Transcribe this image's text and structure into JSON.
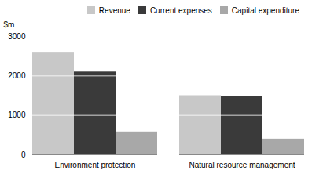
{
  "chart_data": {
    "type": "bar",
    "ylabel": "$m",
    "categories": [
      "Environment protection",
      "Natural resource management"
    ],
    "series": [
      {
        "name": "Revenue",
        "color": "#c8c8c8",
        "values": [
          2600,
          1500
        ]
      },
      {
        "name": "Current expenses",
        "color": "#3a3a3a",
        "values": [
          2100,
          1480
        ]
      },
      {
        "name": "Capital expenditure",
        "color": "#a8a8a8",
        "values": [
          580,
          400
        ]
      }
    ],
    "ylim": [
      0,
      3000
    ],
    "yticks": [
      0,
      1000,
      2000,
      3000
    ],
    "grid": true,
    "legend": "upper right"
  }
}
